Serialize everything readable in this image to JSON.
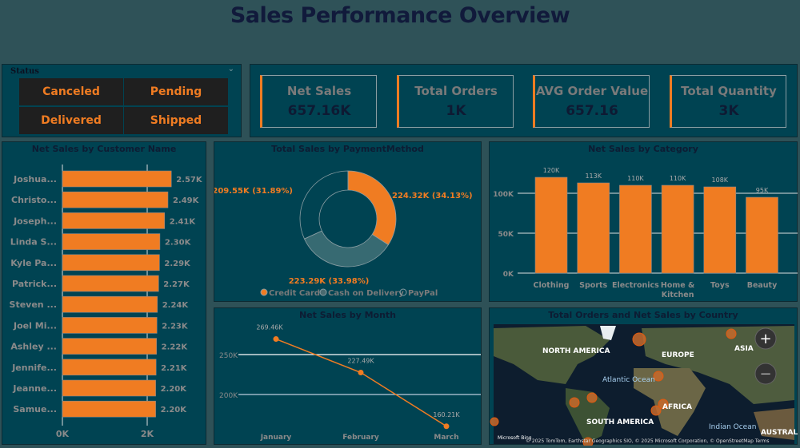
{
  "header": {
    "title": "Sales Performance Overview"
  },
  "status_slicer": {
    "label": "Status",
    "options": [
      "Canceled",
      "Pending",
      "Delivered",
      "Shipped"
    ]
  },
  "kpis": [
    {
      "label": "Net Sales",
      "value": "657.16K"
    },
    {
      "label": "Total Orders",
      "value": "1K"
    },
    {
      "label": "AVG Order Value",
      "value": "657.16"
    },
    {
      "label": "Total Quantity",
      "value": "3K"
    }
  ],
  "colors": {
    "accent": "#f07c22",
    "panel": "#004352",
    "background": "#2e5157",
    "cash": "#376a72"
  },
  "chart_data": [
    {
      "type": "bar",
      "orientation": "horizontal",
      "title": "Net Sales by Customer Name",
      "categories": [
        "Joshua...",
        "Christo...",
        "Joseph...",
        "Linda S...",
        "Kyle Pa...",
        "Patrick...",
        "Steven ...",
        "Joel Mi...",
        "Ashley ...",
        "Jennife...",
        "Jeanne...",
        "Samue..."
      ],
      "values": [
        2570,
        2490,
        2410,
        2300,
        2290,
        2270,
        2240,
        2230,
        2220,
        2210,
        2200,
        2200
      ],
      "data_labels": [
        "2.57K",
        "2.49K",
        "2.41K",
        "2.30K",
        "2.29K",
        "2.27K",
        "2.24K",
        "2.23K",
        "2.22K",
        "2.21K",
        "2.20K",
        "2.20K"
      ],
      "x_ticks": [
        "0K",
        "2K"
      ],
      "grid": true
    },
    {
      "type": "pie",
      "donut": true,
      "title": "Total Sales by PaymentMethod",
      "slices": [
        {
          "name": "Credit Card",
          "value": 224320,
          "label": "224.32K (34.13%)"
        },
        {
          "name": "Cash on Delivery",
          "value": 223290,
          "label": "223.29K (33.98%)"
        },
        {
          "name": "PayPal",
          "value": 209550,
          "label": "209.55K (31.89%)"
        }
      ],
      "legend": "bottom"
    },
    {
      "type": "bar",
      "title": "Net Sales by Category",
      "categories": [
        "Clothing",
        "Sports",
        "Electronics",
        "Home & Kitchen",
        "Toys",
        "Beauty"
      ],
      "values": [
        120000,
        113000,
        110000,
        110000,
        108000,
        95000
      ],
      "data_labels": [
        "120K",
        "113K",
        "110K",
        "110K",
        "108K",
        "95K"
      ],
      "y_ticks": [
        "0K",
        "50K",
        "100K"
      ],
      "ylim": [
        0,
        100000
      ],
      "grid": true
    },
    {
      "type": "line",
      "title": "Net Sales by Month",
      "categories": [
        "January",
        "February",
        "March"
      ],
      "values": [
        269460,
        227490,
        160210
      ],
      "data_labels": [
        "269.46K",
        "227.49K",
        "160.21K"
      ],
      "y_ticks": [
        "200K",
        "250K"
      ],
      "grid": true
    }
  ],
  "map": {
    "title": "Total Orders and Net Sales by Country",
    "labels": [
      "NORTH AMERICA",
      "EUROPE",
      "ASIA",
      "Atlantic Ocean",
      "AFRICA",
      "SOUTH AMERICA",
      "Indian Ocean",
      "AUSTRALIA"
    ],
    "attribution": "© 2025 TomTom, Earthstar Geographics SIO, © 2025 Microsoft Corporation, © OpenStreetMap  Terms",
    "logo": "Microsoft Bing",
    "zoom_in": "+",
    "zoom_out": "−"
  }
}
